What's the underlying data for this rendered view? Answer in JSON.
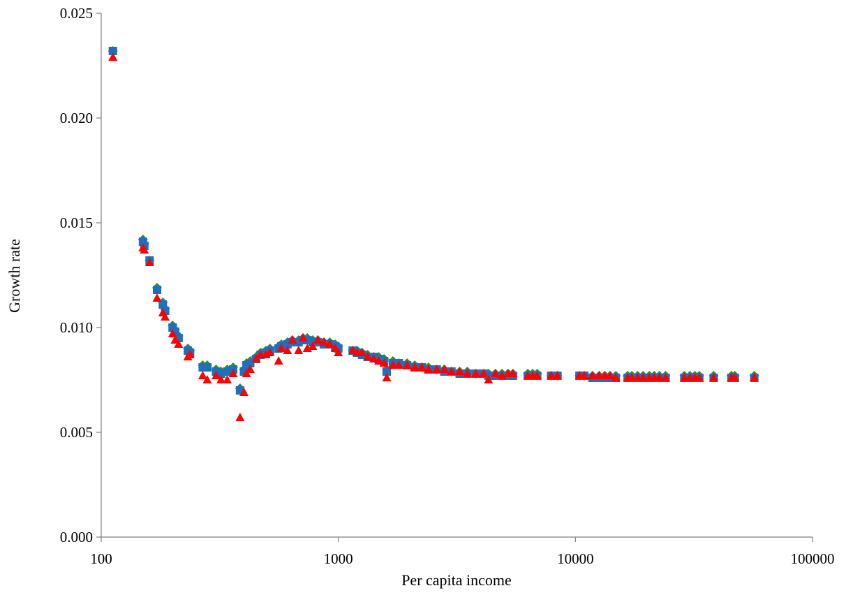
{
  "chart_data": {
    "type": "scatter",
    "title": "",
    "xlabel": "Per capita income",
    "ylabel": "Growth rate",
    "xscale": "log",
    "xlim": [
      100,
      100000
    ],
    "ylim": [
      0,
      0.025
    ],
    "xticks": [
      100,
      1000,
      10000,
      100000
    ],
    "xtick_labels": [
      "100",
      "1000",
      "10000",
      "100000"
    ],
    "yticks": [
      0,
      0.005,
      0.01,
      0.015,
      0.02,
      0.025
    ],
    "ytick_labels": [
      "0.000",
      "0.005",
      "0.010",
      "0.015",
      "0.020",
      "0.025"
    ],
    "grid": false,
    "legend": "none",
    "series": [
      {
        "marker": "diamond",
        "color": "#2e8b3a",
        "points": [
          [
            112,
            0.0232
          ],
          [
            150,
            0.0142
          ],
          [
            152,
            0.014
          ],
          [
            160,
            0.0132
          ],
          [
            172,
            0.0119
          ],
          [
            182,
            0.0112
          ],
          [
            186,
            0.0109
          ],
          [
            200,
            0.0101
          ],
          [
            205,
            0.0099
          ],
          [
            212,
            0.0096
          ],
          [
            232,
            0.009
          ],
          [
            237,
            0.0089
          ],
          [
            268,
            0.0082
          ],
          [
            280,
            0.0082
          ],
          [
            305,
            0.008
          ],
          [
            320,
            0.0079
          ],
          [
            340,
            0.008
          ],
          [
            360,
            0.0081
          ],
          [
            385,
            0.0071
          ],
          [
            400,
            0.008
          ],
          [
            410,
            0.0083
          ],
          [
            425,
            0.0084
          ],
          [
            450,
            0.0086
          ],
          [
            470,
            0.0088
          ],
          [
            495,
            0.0089
          ],
          [
            515,
            0.009
          ],
          [
            560,
            0.0091
          ],
          [
            575,
            0.0092
          ],
          [
            610,
            0.0093
          ],
          [
            640,
            0.0094
          ],
          [
            680,
            0.0094
          ],
          [
            710,
            0.0095
          ],
          [
            740,
            0.0095
          ],
          [
            780,
            0.0094
          ],
          [
            820,
            0.0094
          ],
          [
            870,
            0.0093
          ],
          [
            920,
            0.0093
          ],
          [
            970,
            0.0092
          ],
          [
            1000,
            0.0091
          ],
          [
            1150,
            0.0089
          ],
          [
            1200,
            0.0089
          ],
          [
            1260,
            0.0088
          ],
          [
            1330,
            0.0087
          ],
          [
            1410,
            0.0086
          ],
          [
            1480,
            0.0086
          ],
          [
            1560,
            0.0085
          ],
          [
            1600,
            0.008
          ],
          [
            1700,
            0.0084
          ],
          [
            1800,
            0.0083
          ],
          [
            1950,
            0.0083
          ],
          [
            2100,
            0.0082
          ],
          [
            2250,
            0.0081
          ],
          [
            2400,
            0.0081
          ],
          [
            2600,
            0.008
          ],
          [
            2800,
            0.008
          ],
          [
            3000,
            0.0079
          ],
          [
            3250,
            0.0079
          ],
          [
            3500,
            0.0079
          ],
          [
            3800,
            0.0078
          ],
          [
            4100,
            0.0078
          ],
          [
            4300,
            0.0078
          ],
          [
            4600,
            0.0078
          ],
          [
            4900,
            0.0078
          ],
          [
            5200,
            0.0078
          ],
          [
            5450,
            0.0078
          ],
          [
            6300,
            0.0078
          ],
          [
            6600,
            0.0078
          ],
          [
            6900,
            0.0078
          ],
          [
            7900,
            0.0077
          ],
          [
            8400,
            0.0077
          ],
          [
            10400,
            0.0077
          ],
          [
            10900,
            0.0077
          ],
          [
            11800,
            0.0077
          ],
          [
            12600,
            0.0077
          ],
          [
            13300,
            0.0077
          ],
          [
            14000,
            0.0077
          ],
          [
            14800,
            0.0077
          ],
          [
            16600,
            0.0077
          ],
          [
            17300,
            0.0077
          ],
          [
            18300,
            0.0077
          ],
          [
            19300,
            0.0077
          ],
          [
            20500,
            0.0077
          ],
          [
            21500,
            0.0077
          ],
          [
            22600,
            0.0077
          ],
          [
            24000,
            0.0077
          ],
          [
            28800,
            0.0077
          ],
          [
            30400,
            0.0077
          ],
          [
            31900,
            0.0077
          ],
          [
            33300,
            0.0077
          ],
          [
            38300,
            0.0077
          ],
          [
            45500,
            0.0077
          ],
          [
            47000,
            0.0077
          ],
          [
            56800,
            0.0077
          ]
        ]
      },
      {
        "marker": "square",
        "color": "#1f6fbf",
        "points": [
          [
            112,
            0.0232
          ],
          [
            150,
            0.0141
          ],
          [
            152,
            0.0139
          ],
          [
            160,
            0.0132
          ],
          [
            172,
            0.0118
          ],
          [
            182,
            0.0111
          ],
          [
            186,
            0.0108
          ],
          [
            200,
            0.01
          ],
          [
            205,
            0.0098
          ],
          [
            212,
            0.0095
          ],
          [
            232,
            0.0089
          ],
          [
            237,
            0.0088
          ],
          [
            268,
            0.0081
          ],
          [
            280,
            0.0081
          ],
          [
            305,
            0.0079
          ],
          [
            320,
            0.0078
          ],
          [
            340,
            0.0079
          ],
          [
            360,
            0.008
          ],
          [
            385,
            0.007
          ],
          [
            400,
            0.0079
          ],
          [
            410,
            0.0082
          ],
          [
            425,
            0.0083
          ],
          [
            450,
            0.0085
          ],
          [
            470,
            0.0087
          ],
          [
            495,
            0.0088
          ],
          [
            515,
            0.0089
          ],
          [
            560,
            0.009
          ],
          [
            575,
            0.0091
          ],
          [
            610,
            0.0092
          ],
          [
            640,
            0.0093
          ],
          [
            680,
            0.0093
          ],
          [
            710,
            0.0094
          ],
          [
            740,
            0.0094
          ],
          [
            780,
            0.0093
          ],
          [
            820,
            0.0093
          ],
          [
            870,
            0.0092
          ],
          [
            920,
            0.0092
          ],
          [
            970,
            0.0091
          ],
          [
            1000,
            0.009
          ],
          [
            1150,
            0.0089
          ],
          [
            1200,
            0.0088
          ],
          [
            1260,
            0.0087
          ],
          [
            1330,
            0.0086
          ],
          [
            1410,
            0.0086
          ],
          [
            1480,
            0.0085
          ],
          [
            1560,
            0.0084
          ],
          [
            1600,
            0.0079
          ],
          [
            1700,
            0.0083
          ],
          [
            1800,
            0.0083
          ],
          [
            1950,
            0.0082
          ],
          [
            2100,
            0.0081
          ],
          [
            2250,
            0.0081
          ],
          [
            2400,
            0.008
          ],
          [
            2600,
            0.008
          ],
          [
            2800,
            0.0079
          ],
          [
            3000,
            0.0079
          ],
          [
            3250,
            0.0078
          ],
          [
            3500,
            0.0078
          ],
          [
            3800,
            0.0078
          ],
          [
            4100,
            0.0078
          ],
          [
            4300,
            0.0077
          ],
          [
            4600,
            0.0077
          ],
          [
            4900,
            0.0077
          ],
          [
            5200,
            0.0077
          ],
          [
            5450,
            0.0077
          ],
          [
            6300,
            0.0077
          ],
          [
            6600,
            0.0077
          ],
          [
            6900,
            0.0077
          ],
          [
            7900,
            0.0077
          ],
          [
            8400,
            0.0077
          ],
          [
            10400,
            0.0077
          ],
          [
            10900,
            0.0077
          ],
          [
            11800,
            0.0076
          ],
          [
            12600,
            0.0076
          ],
          [
            13300,
            0.0076
          ],
          [
            14000,
            0.0076
          ],
          [
            14800,
            0.0076
          ],
          [
            16600,
            0.0076
          ],
          [
            17300,
            0.0076
          ],
          [
            18300,
            0.0076
          ],
          [
            19300,
            0.0076
          ],
          [
            20500,
            0.0076
          ],
          [
            21500,
            0.0076
          ],
          [
            22600,
            0.0076
          ],
          [
            24000,
            0.0076
          ],
          [
            28800,
            0.0076
          ],
          [
            30400,
            0.0076
          ],
          [
            31900,
            0.0076
          ],
          [
            33300,
            0.0076
          ],
          [
            38300,
            0.0076
          ],
          [
            45500,
            0.0076
          ],
          [
            47000,
            0.0076
          ],
          [
            56800,
            0.0076
          ]
        ]
      },
      {
        "marker": "triangle",
        "color": "#ff0000",
        "points": [
          [
            112,
            0.0229
          ],
          [
            150,
            0.0138
          ],
          [
            152,
            0.0137
          ],
          [
            160,
            0.0131
          ],
          [
            172,
            0.0114
          ],
          [
            182,
            0.0107
          ],
          [
            186,
            0.0105
          ],
          [
            200,
            0.0097
          ],
          [
            205,
            0.0094
          ],
          [
            212,
            0.0092
          ],
          [
            232,
            0.0086
          ],
          [
            237,
            0.0087
          ],
          [
            268,
            0.0077
          ],
          [
            280,
            0.0075
          ],
          [
            305,
            0.0077
          ],
          [
            320,
            0.0075
          ],
          [
            340,
            0.0075
          ],
          [
            360,
            0.0078
          ],
          [
            385,
            0.0057
          ],
          [
            400,
            0.0069
          ],
          [
            410,
            0.0078
          ],
          [
            425,
            0.008
          ],
          [
            450,
            0.0085
          ],
          [
            470,
            0.0087
          ],
          [
            495,
            0.0087
          ],
          [
            515,
            0.0088
          ],
          [
            560,
            0.0084
          ],
          [
            575,
            0.009
          ],
          [
            610,
            0.0089
          ],
          [
            640,
            0.0094
          ],
          [
            680,
            0.0089
          ],
          [
            710,
            0.0095
          ],
          [
            740,
            0.009
          ],
          [
            780,
            0.0091
          ],
          [
            820,
            0.0094
          ],
          [
            870,
            0.0093
          ],
          [
            920,
            0.0092
          ],
          [
            970,
            0.009
          ],
          [
            1000,
            0.0088
          ],
          [
            1150,
            0.0089
          ],
          [
            1200,
            0.0088
          ],
          [
            1260,
            0.0088
          ],
          [
            1330,
            0.0086
          ],
          [
            1410,
            0.0085
          ],
          [
            1480,
            0.0084
          ],
          [
            1560,
            0.0083
          ],
          [
            1600,
            0.0076
          ],
          [
            1700,
            0.0082
          ],
          [
            1800,
            0.0082
          ],
          [
            1950,
            0.0082
          ],
          [
            2100,
            0.0081
          ],
          [
            2250,
            0.0081
          ],
          [
            2400,
            0.008
          ],
          [
            2600,
            0.008
          ],
          [
            2800,
            0.008
          ],
          [
            3000,
            0.0079
          ],
          [
            3250,
            0.0079
          ],
          [
            3500,
            0.0078
          ],
          [
            3800,
            0.0078
          ],
          [
            4100,
            0.0078
          ],
          [
            4300,
            0.0075
          ],
          [
            4600,
            0.0078
          ],
          [
            4900,
            0.0077
          ],
          [
            5200,
            0.0078
          ],
          [
            5450,
            0.0078
          ],
          [
            6300,
            0.0077
          ],
          [
            6600,
            0.0077
          ],
          [
            6900,
            0.0077
          ],
          [
            7900,
            0.0077
          ],
          [
            8400,
            0.0077
          ],
          [
            10400,
            0.0077
          ],
          [
            10900,
            0.0077
          ],
          [
            11800,
            0.0077
          ],
          [
            12600,
            0.0077
          ],
          [
            13300,
            0.0077
          ],
          [
            14000,
            0.0077
          ],
          [
            14800,
            0.0076
          ],
          [
            16600,
            0.0076
          ],
          [
            17300,
            0.0076
          ],
          [
            18300,
            0.0076
          ],
          [
            19300,
            0.0076
          ],
          [
            20500,
            0.0076
          ],
          [
            21500,
            0.0076
          ],
          [
            22600,
            0.0076
          ],
          [
            24000,
            0.0076
          ],
          [
            28800,
            0.0076
          ],
          [
            30400,
            0.0076
          ],
          [
            31900,
            0.0076
          ],
          [
            33300,
            0.0076
          ],
          [
            38300,
            0.0076
          ],
          [
            45500,
            0.0076
          ],
          [
            47000,
            0.0076
          ],
          [
            56800,
            0.0076
          ]
        ]
      }
    ]
  }
}
